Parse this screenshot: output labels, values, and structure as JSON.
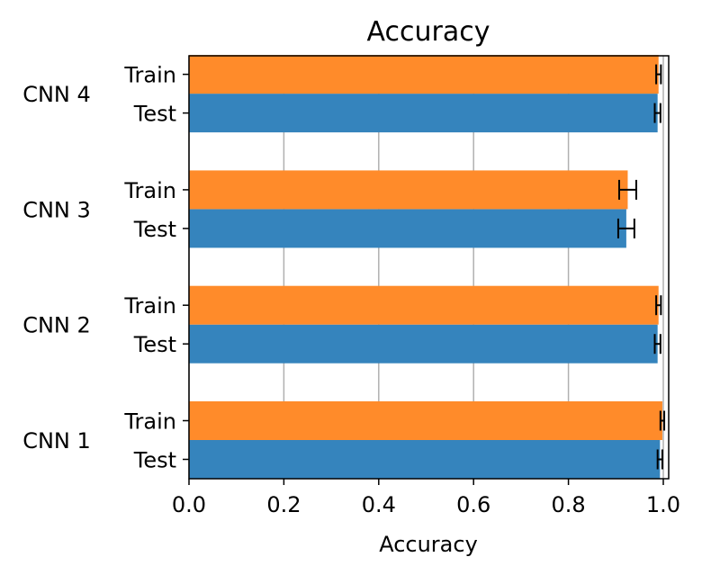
{
  "chart_data": {
    "type": "bar",
    "orientation": "horizontal",
    "title": "Accuracy",
    "xlabel": "Accuracy",
    "ylabel": "",
    "xlim": [
      0.0,
      1.01
    ],
    "xticks": [
      "0.0",
      "0.2",
      "0.4",
      "0.6",
      "0.8",
      "1.0"
    ],
    "grid": "vertical",
    "groups": [
      "CNN 1",
      "CNN 2",
      "CNN 3",
      "CNN 4"
    ],
    "series": [
      {
        "name": "Test",
        "color": "#3584bd",
        "values": [
          0.993,
          0.988,
          0.922,
          0.988
        ],
        "errors": [
          0.005,
          0.006,
          0.017,
          0.006
        ]
      },
      {
        "name": "Train",
        "color": "#ff8b2a",
        "values": [
          0.998,
          0.99,
          0.925,
          0.99
        ],
        "errors": [
          0.004,
          0.005,
          0.018,
          0.005
        ]
      }
    ]
  }
}
